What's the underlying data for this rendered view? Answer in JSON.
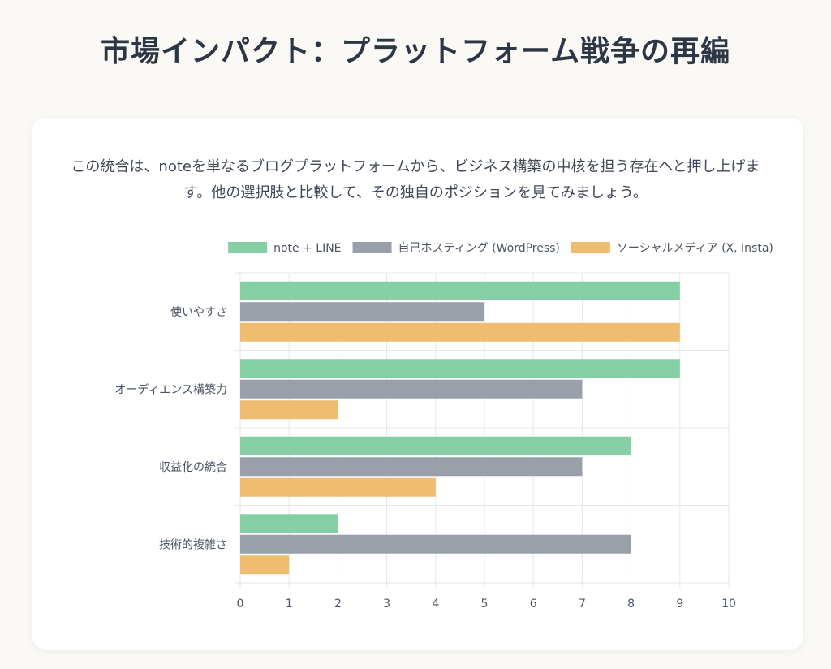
{
  "title": "市場インパクト：プラットフォーム戦争の再編",
  "intro_text": "この統合は、noteを単なるブログプラットフォームから、ビジネス構築の中核を担う存在へと押し上げます。他の選択肢と比較して、その独自のポジションを見てみましょう。",
  "chart_data": {
    "type": "bar",
    "orientation": "horizontal",
    "categories": [
      "使いやすさ",
      "オーディエンス構築力",
      "収益化の統合",
      "技術的複雑さ"
    ],
    "series": [
      {
        "name": "note + LINE",
        "values": [
          9,
          9,
          8,
          2
        ],
        "color": "#86cfa4"
      },
      {
        "name": "自己ホスティング (WordPress)",
        "values": [
          5,
          7,
          7,
          8
        ],
        "color": "#9aa0a9"
      },
      {
        "name": "ソーシャルメディア (X, Insta)",
        "values": [
          9,
          2,
          4,
          1
        ],
        "color": "#efbd72"
      }
    ],
    "xlim": [
      0,
      10
    ],
    "x_ticks": [
      "0",
      "1",
      "2",
      "3",
      "4",
      "5",
      "6",
      "7",
      "8",
      "9",
      "10"
    ],
    "grid": true,
    "legend_position": "top"
  }
}
